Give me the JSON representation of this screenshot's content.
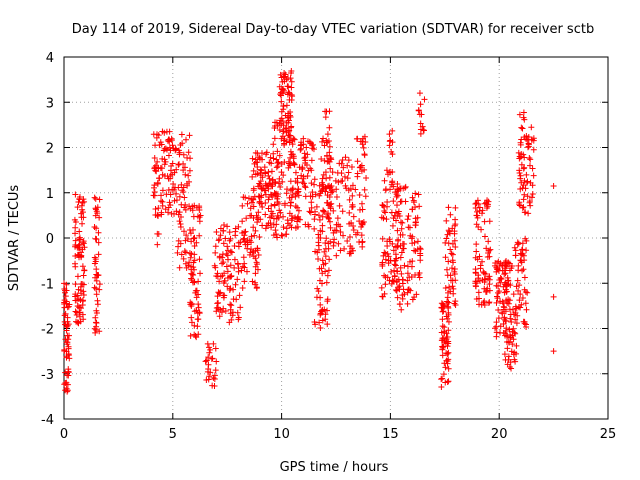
{
  "chart_data": {
    "type": "scatter",
    "title": "Day 114 of 2019, Sidereal Day-to-day VTEC variation (SDTVAR) for receiver sctb",
    "xlabel": "GPS time / hours",
    "ylabel": "SDTVAR / TECUs",
    "xlim": [
      0,
      25
    ],
    "ylim": [
      -4,
      4
    ],
    "x_ticks": [
      0,
      5,
      10,
      15,
      20,
      25
    ],
    "y_ticks": [
      -4,
      -3,
      -2,
      -1,
      0,
      1,
      2,
      3,
      4
    ],
    "grid": true,
    "marker": "+",
    "marker_color": "#ff0000",
    "clusters": [
      {
        "x": [
          0.0,
          0.25
        ],
        "y": [
          -3.4,
          -1.0
        ],
        "n": 60
      },
      {
        "x": [
          0.5,
          0.95
        ],
        "y": [
          -1.9,
          1.0
        ],
        "n": 90
      },
      {
        "x": [
          1.4,
          1.65
        ],
        "y": [
          -2.1,
          0.9
        ],
        "n": 45
      },
      {
        "x": [
          4.1,
          4.5
        ],
        "y": [
          -0.2,
          2.3
        ],
        "n": 40
      },
      {
        "x": [
          4.5,
          5.2
        ],
        "y": [
          0.5,
          2.4
        ],
        "n": 60
      },
      {
        "x": [
          5.2,
          5.8
        ],
        "y": [
          -0.7,
          2.3
        ],
        "n": 60
      },
      {
        "x": [
          5.8,
          6.3
        ],
        "y": [
          -2.2,
          0.8
        ],
        "n": 70
      },
      {
        "x": [
          6.5,
          7.0
        ],
        "y": [
          -3.3,
          -2.3
        ],
        "n": 25
      },
      {
        "x": [
          6.9,
          8.1
        ],
        "y": [
          -1.9,
          0.3
        ],
        "n": 100
      },
      {
        "x": [
          8.1,
          9.0
        ],
        "y": [
          -1.2,
          1.0
        ],
        "n": 70
      },
      {
        "x": [
          8.6,
          9.6
        ],
        "y": [
          0.2,
          1.9
        ],
        "n": 90
      },
      {
        "x": [
          9.6,
          10.4
        ],
        "y": [
          0.0,
          2.6
        ],
        "n": 90
      },
      {
        "x": [
          9.9,
          10.5
        ],
        "y": [
          2.3,
          3.7
        ],
        "n": 60
      },
      {
        "x": [
          10.4,
          11.5
        ],
        "y": [
          0.2,
          2.2
        ],
        "n": 100
      },
      {
        "x": [
          11.5,
          12.2
        ],
        "y": [
          -2.0,
          1.3
        ],
        "n": 80
      },
      {
        "x": [
          11.8,
          12.3
        ],
        "y": [
          0.5,
          2.8
        ],
        "n": 40
      },
      {
        "x": [
          12.2,
          13.4
        ],
        "y": [
          -0.4,
          1.8
        ],
        "n": 80
      },
      {
        "x": [
          13.4,
          13.9
        ],
        "y": [
          -0.3,
          2.4
        ],
        "n": 40
      },
      {
        "x": [
          14.6,
          15.3
        ],
        "y": [
          -1.3,
          1.5
        ],
        "n": 80
      },
      {
        "x": [
          14.9,
          15.1
        ],
        "y": [
          1.8,
          2.5
        ],
        "n": 8
      },
      {
        "x": [
          15.3,
          15.8
        ],
        "y": [
          -1.6,
          1.2
        ],
        "n": 60
      },
      {
        "x": [
          15.8,
          16.4
        ],
        "y": [
          -1.4,
          1.0
        ],
        "n": 50
      },
      {
        "x": [
          16.3,
          16.6
        ],
        "y": [
          2.3,
          3.5
        ],
        "n": 12
      },
      {
        "x": [
          17.3,
          17.7
        ],
        "y": [
          -3.3,
          -1.4
        ],
        "n": 60
      },
      {
        "x": [
          17.5,
          18.0
        ],
        "y": [
          -1.6,
          0.7
        ],
        "n": 50
      },
      {
        "x": [
          18.9,
          19.6
        ],
        "y": [
          -1.5,
          0.9
        ],
        "n": 80
      },
      {
        "x": [
          19.8,
          20.4
        ],
        "y": [
          -2.2,
          -0.5
        ],
        "n": 60
      },
      {
        "x": [
          20.2,
          20.8
        ],
        "y": [
          -2.9,
          -0.5
        ],
        "n": 70
      },
      {
        "x": [
          20.7,
          21.3
        ],
        "y": [
          -2.0,
          0.0
        ],
        "n": 50
      },
      {
        "x": [
          20.9,
          21.6
        ],
        "y": [
          0.5,
          2.8
        ],
        "n": 70
      }
    ],
    "isolated_points": [
      {
        "x": 22.5,
        "y": 1.15
      },
      {
        "x": 22.5,
        "y": -1.3
      },
      {
        "x": 22.5,
        "y": -2.5
      },
      {
        "x": 12.2,
        "y": 2.8
      },
      {
        "x": 16.4,
        "y": 2.3
      }
    ]
  }
}
